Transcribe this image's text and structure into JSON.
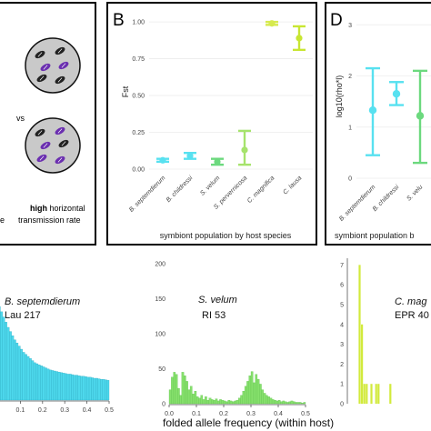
{
  "panelA": {
    "caption_left": "e",
    "caption_high": "high",
    "caption_rest": " horizontal",
    "caption_line2": "transmission rate",
    "vs": "vs"
  },
  "chart_data": [
    {
      "id": "B",
      "type": "scatter",
      "panel_label": "B",
      "ylabel": "Fst",
      "xlabel": "symbiont population by host species",
      "ylim": [
        0,
        1.05
      ],
      "yticks": [
        "0.00",
        "0.25",
        "0.50",
        "0.75",
        "1.00"
      ],
      "categories": [
        "B. septemdierum",
        "B. childressi",
        "S. velum",
        "S. pervernicosa",
        "C. magnifica",
        "C. lausa"
      ],
      "values": [
        0.06,
        0.09,
        0.05,
        0.13,
        0.99,
        0.89
      ],
      "err_low": [
        0.05,
        0.07,
        0.03,
        0.03,
        0.98,
        0.81
      ],
      "err_high": [
        0.07,
        0.11,
        0.07,
        0.26,
        1.0,
        0.97
      ],
      "colors": [
        "#58e1f0",
        "#58e1f0",
        "#6cd97e",
        "#a6e36c",
        "#d6ea4e",
        "#c8e632"
      ]
    },
    {
      "id": "D",
      "type": "scatter",
      "panel_label": "D",
      "ylabel": "log10(rho*l)",
      "xlabel": "symbiont population b",
      "yticks": [
        "0",
        "1",
        "2",
        "3"
      ],
      "ylim": [
        0,
        3.2
      ],
      "categories": [
        "B. septemdierum",
        "B. childressi",
        "S. velu"
      ],
      "values": [
        1.33,
        1.65,
        1.22
      ],
      "err_low": [
        0.45,
        1.43,
        0.3
      ],
      "err_high": [
        2.15,
        1.88,
        2.1
      ],
      "colors": [
        "#58e1f0",
        "#58e1f0",
        "#6cd97e"
      ]
    },
    {
      "id": "hist1",
      "type": "bar",
      "species": "B. septemdierum",
      "site": "Lau 217",
      "xlim": [
        0,
        0.5
      ],
      "xticks": [
        "0.1",
        "0.2",
        "0.3",
        "0.4",
        "0.5"
      ],
      "ylim": [
        0,
        14
      ],
      "values": [
        9,
        8.5,
        8,
        7.5,
        7,
        6.6,
        6.2,
        5.8,
        5.5,
        5.2,
        4.9,
        4.6,
        4.4,
        4.2,
        4.0,
        3.8,
        3.6,
        3.5,
        3.4,
        3.3,
        3.2,
        3.1,
        3.0,
        2.9,
        2.85,
        2.8,
        2.75,
        2.7,
        2.65,
        2.6,
        2.55,
        2.5,
        2.5,
        2.45,
        2.4,
        2.4,
        2.35,
        2.3,
        2.3,
        2.25,
        2.2,
        2.2,
        2.15,
        2.1,
        2.1,
        2.05,
        2.0,
        2.0,
        1.95,
        1.9
      ],
      "color": "#4dd8ec"
    },
    {
      "id": "hist2",
      "type": "bar",
      "species": "S. velum",
      "site": "RI 53",
      "xlim": [
        0,
        0.5
      ],
      "xticks": [
        "0.0",
        "0.1",
        "0.2",
        "0.3",
        "0.4",
        "0.5"
      ],
      "yticks": [
        "0",
        "50",
        "100",
        "150",
        "200"
      ],
      "ylim": [
        0,
        200
      ],
      "values": [
        20,
        38,
        45,
        42,
        22,
        12,
        45,
        40,
        32,
        20,
        25,
        14,
        18,
        10,
        8,
        12,
        6,
        10,
        5,
        8,
        6,
        5,
        7,
        4,
        6,
        5,
        4,
        3,
        5,
        4,
        3,
        4,
        5,
        8,
        12,
        18,
        25,
        32,
        40,
        46,
        30,
        42,
        35,
        28,
        20,
        15,
        12,
        10,
        8,
        6,
        5,
        4,
        5,
        3,
        4,
        3,
        2,
        3,
        4,
        3,
        2,
        2,
        2,
        1,
        2
      ],
      "color": "#86e06c",
      "xlabel": "folded allele frequency (within host)"
    },
    {
      "id": "hist3",
      "type": "bar",
      "species": "C. mag",
      "site": "EPR 40",
      "yticks": [
        "0",
        "1",
        "2",
        "3",
        "4",
        "5",
        "6",
        "7"
      ],
      "ylim": [
        0,
        7.2
      ],
      "values": [
        0,
        0,
        0,
        0,
        7,
        4,
        1,
        1,
        0,
        1,
        0,
        1,
        1,
        0,
        0,
        0,
        0,
        1,
        0,
        0
      ],
      "color": "#d2ea3c"
    }
  ]
}
